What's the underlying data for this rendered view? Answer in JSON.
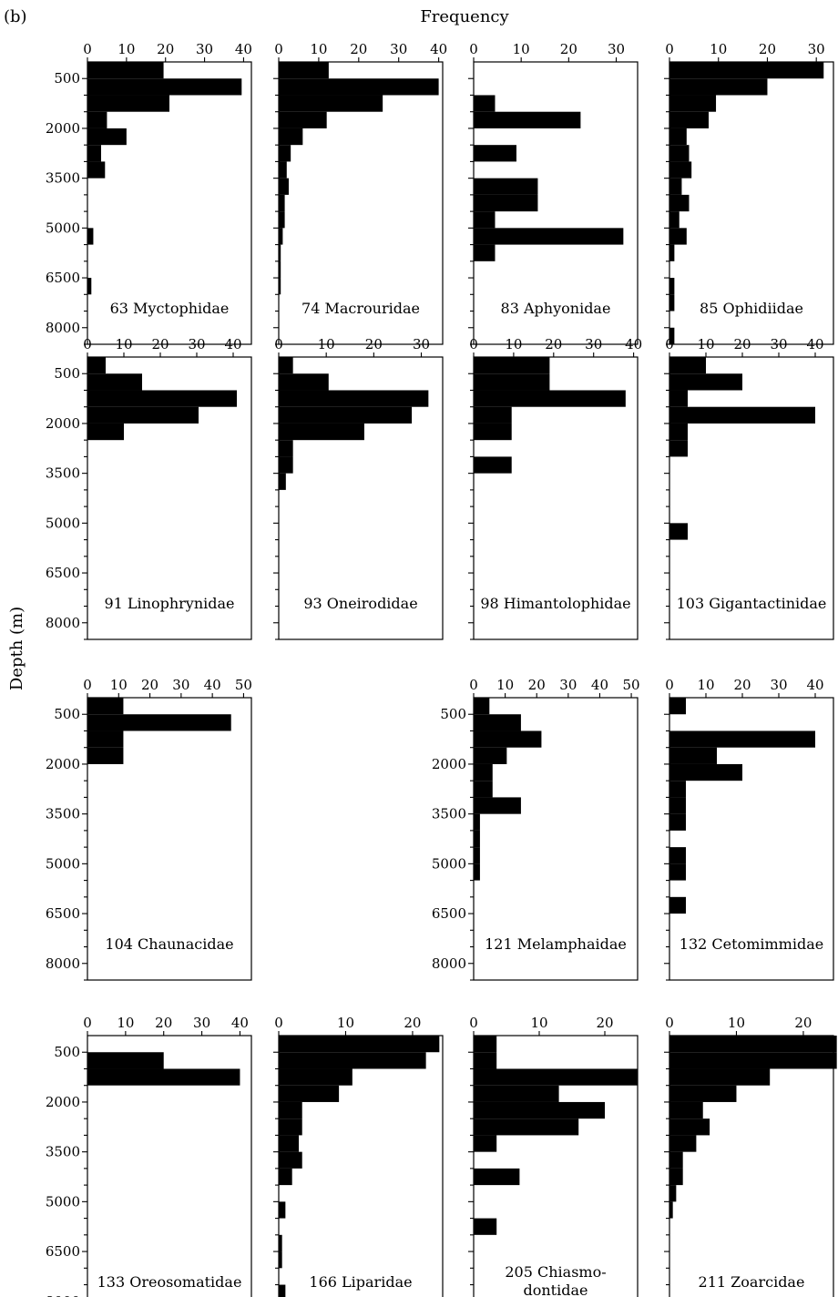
{
  "figure_label": "(b)",
  "x_axis_title": "Frequency",
  "y_axis_title": "Depth (m)",
  "chart_data": {
    "type": "bar",
    "orientation": "horizontal",
    "depth_ticks": [
      500,
      2000,
      3500,
      5000,
      6500,
      8000
    ],
    "depth_bins": [
      0,
      500,
      1000,
      1500,
      2000,
      2500,
      3000,
      3500,
      4000,
      4500,
      5000,
      5500,
      6000,
      6500,
      7000,
      7500,
      8000,
      8500
    ],
    "ylim": [
      0,
      8500
    ],
    "panels": [
      {
        "row": 0,
        "col": 0,
        "label": "63 Myctophidae",
        "xticks": [
          0,
          10,
          20,
          30,
          40
        ],
        "xlim": [
          0,
          42
        ],
        "show_y_labels": true,
        "values": [
          19.5,
          39.5,
          21,
          5,
          10,
          3.5,
          4.5,
          0,
          0,
          0,
          1.5,
          0,
          0,
          1,
          0,
          0,
          0
        ]
      },
      {
        "row": 0,
        "col": 1,
        "label": "74 Macrouridae",
        "xticks": [
          0,
          10,
          20,
          30,
          40
        ],
        "xlim": [
          0,
          41
        ],
        "show_y_labels": false,
        "values": [
          12.5,
          40,
          26,
          12,
          6,
          3,
          2,
          2.5,
          1.5,
          1.5,
          1,
          0.5,
          0.5,
          0.5,
          0,
          0,
          0
        ]
      },
      {
        "row": 0,
        "col": 2,
        "label": "83 Aphyonidae",
        "xticks": [
          0,
          10,
          20,
          30
        ],
        "xlim": [
          0,
          34.5
        ],
        "show_y_labels": false,
        "values": [
          0,
          0,
          4.5,
          22.5,
          0,
          9,
          0,
          13.5,
          13.5,
          4.5,
          31.5,
          4.5,
          0,
          0,
          0,
          0,
          0
        ]
      },
      {
        "row": 0,
        "col": 3,
        "label": "85 Ophidiidae",
        "xticks": [
          0,
          10,
          20,
          30
        ],
        "xlim": [
          0,
          33.5
        ],
        "show_y_labels": false,
        "values": [
          31.5,
          20,
          9.5,
          8,
          3.5,
          4,
          4.5,
          2.5,
          4,
          2,
          3.5,
          1,
          0,
          1,
          1,
          0,
          1
        ]
      },
      {
        "row": 1,
        "col": 0,
        "label": "91 Linophrynidae",
        "xticks": [
          0,
          10,
          20,
          30,
          40
        ],
        "xlim": [
          0,
          45
        ],
        "show_y_labels": true,
        "values": [
          5,
          15,
          41,
          30.5,
          10,
          0,
          0,
          0,
          0,
          0,
          0,
          0,
          0,
          0,
          0,
          0,
          0
        ]
      },
      {
        "row": 1,
        "col": 1,
        "label": "93 Oneirodidae",
        "xticks": [
          0,
          10,
          20,
          30
        ],
        "xlim": [
          0,
          34.5
        ],
        "show_y_labels": false,
        "values": [
          3,
          10.5,
          31.5,
          28,
          18,
          3,
          3,
          1.5,
          0,
          0,
          0,
          0,
          0,
          0,
          0,
          0,
          0
        ]
      },
      {
        "row": 1,
        "col": 2,
        "label": "98 Himantolophidae",
        "xticks": [
          0,
          10,
          20,
          30,
          40
        ],
        "xlim": [
          0,
          41
        ],
        "show_y_labels": false,
        "values": [
          19,
          19,
          38,
          9.5,
          9.5,
          0,
          9.5,
          0,
          0,
          0,
          0,
          0,
          0,
          0,
          0,
          0,
          0
        ]
      },
      {
        "row": 1,
        "col": 3,
        "label": "103 Gigantactinidae",
        "xticks": [
          0,
          10,
          20,
          30,
          40
        ],
        "xlim": [
          0,
          45
        ],
        "show_y_labels": false,
        "values": [
          10,
          20,
          5,
          40,
          5,
          5,
          0,
          0,
          0,
          0,
          5,
          0,
          0,
          0,
          0,
          0,
          0
        ]
      },
      {
        "row": 2,
        "col": 0,
        "label": "104 Chaunacidae",
        "xticks": [
          0,
          10,
          20,
          30,
          40,
          50
        ],
        "xlim": [
          0,
          52.5
        ],
        "show_y_labels": true,
        "values": [
          11.5,
          46,
          11.5,
          11.5,
          0,
          0,
          0,
          0,
          0,
          0,
          0,
          0,
          0,
          0,
          0,
          0,
          0
        ]
      },
      {
        "row": 2,
        "col": 2,
        "label": "121 Melamphaidae",
        "xticks": [
          0,
          10,
          20,
          30,
          40,
          50
        ],
        "xlim": [
          0,
          52
        ],
        "show_y_labels": true,
        "values": [
          5,
          15,
          21.5,
          10.5,
          6,
          6,
          15,
          2,
          2,
          2,
          2,
          0,
          0,
          0,
          0,
          0,
          0
        ]
      },
      {
        "row": 2,
        "col": 3,
        "label": "132 Cetomimmidae",
        "xticks": [
          0,
          10,
          20,
          30,
          40
        ],
        "xlim": [
          0,
          45
        ],
        "show_y_labels": false,
        "values": [
          4.5,
          0,
          40,
          13,
          20,
          4.5,
          4.5,
          4.5,
          0,
          4.5,
          4.5,
          0,
          4.5,
          0,
          0,
          0,
          0
        ]
      },
      {
        "row": 3,
        "col": 0,
        "label": "133 Oreosomatidae",
        "xticks": [
          0,
          10,
          20,
          30,
          40
        ],
        "xlim": [
          0,
          43
        ],
        "show_y_labels": true,
        "values": [
          0,
          20,
          40,
          0,
          0,
          0,
          0,
          0,
          0,
          0,
          0,
          0,
          0,
          0,
          0,
          0,
          0
        ]
      },
      {
        "row": 3,
        "col": 1,
        "label": "166 Liparidae",
        "xticks": [
          0,
          10,
          20
        ],
        "xlim": [
          0,
          24.5
        ],
        "show_y_labels": false,
        "values": [
          24,
          22,
          11,
          9,
          3.5,
          3.5,
          3,
          3.5,
          2,
          0,
          1,
          0,
          0.5,
          0.5,
          0,
          1,
          0
        ]
      },
      {
        "row": 3,
        "col": 2,
        "label": "205 Chiasmo-|dontidae",
        "xticks": [
          0,
          10,
          20
        ],
        "xlim": [
          0,
          25
        ],
        "show_y_labels": false,
        "values": [
          3.5,
          3.5,
          25,
          13,
          20,
          16,
          3.5,
          0,
          7,
          0,
          0,
          3.5,
          0,
          0,
          0,
          0,
          0
        ]
      },
      {
        "row": 3,
        "col": 3,
        "label": "211 Zoarcidae",
        "xticks": [
          0,
          10,
          20
        ],
        "xlim": [
          0,
          24.5
        ],
        "show_y_labels": false,
        "values": [
          25,
          25,
          15,
          10,
          5,
          6,
          4,
          2,
          2,
          1,
          0.5,
          0,
          0,
          0,
          0,
          0,
          0
        ]
      }
    ]
  }
}
